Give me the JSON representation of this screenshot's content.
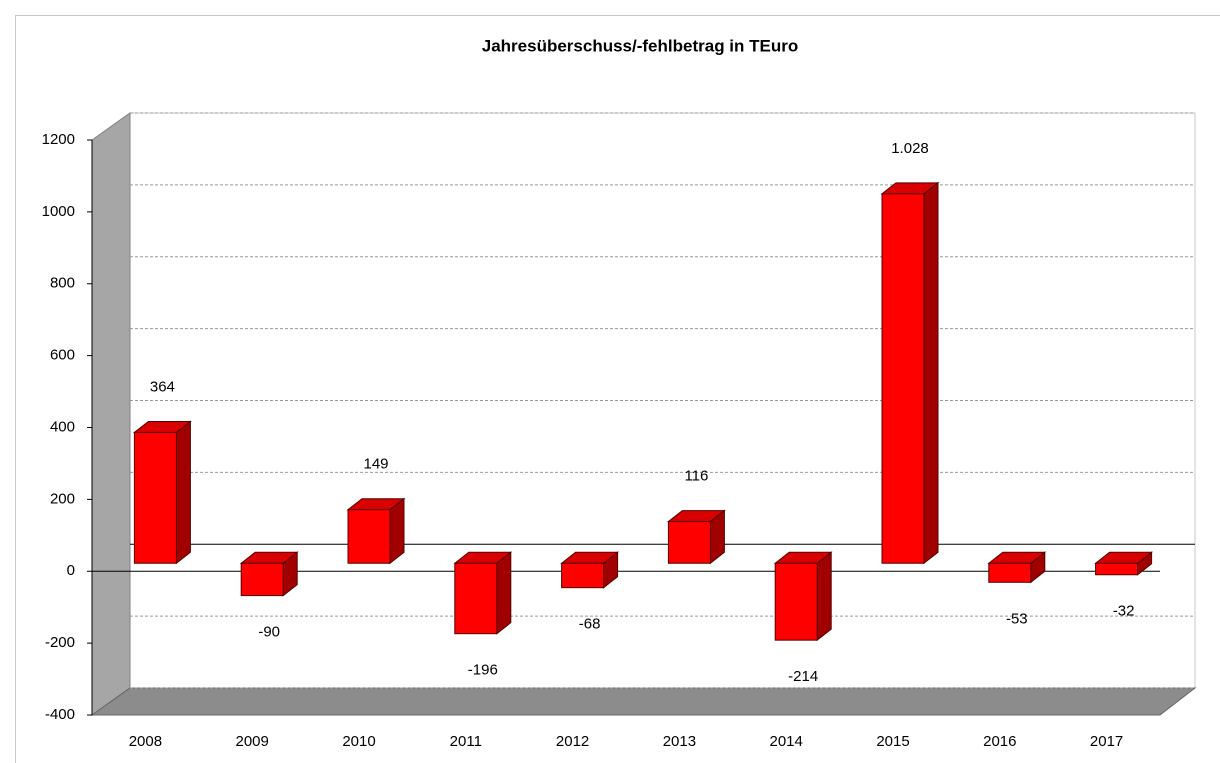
{
  "chart_data": {
    "type": "bar3d",
    "title": "Jahresüberschuss/-fehlbetrag in TEuro",
    "categories": [
      "2008",
      "2009",
      "2010",
      "2011",
      "2012",
      "2013",
      "2014",
      "2015",
      "2016",
      "2017"
    ],
    "values": [
      364,
      -90,
      149,
      -196,
      -68,
      116,
      -214,
      1028,
      -53,
      -32
    ],
    "value_labels": [
      "364",
      "-90",
      "149",
      "-196",
      "-68",
      "116",
      "-214",
      "1.028",
      "-53",
      "-32"
    ],
    "color": "#ff0000",
    "ylim": [
      -400,
      1200
    ],
    "yticks": [
      -400,
      -200,
      0,
      200,
      400,
      600,
      800,
      1000,
      1200
    ],
    "grid": true
  }
}
